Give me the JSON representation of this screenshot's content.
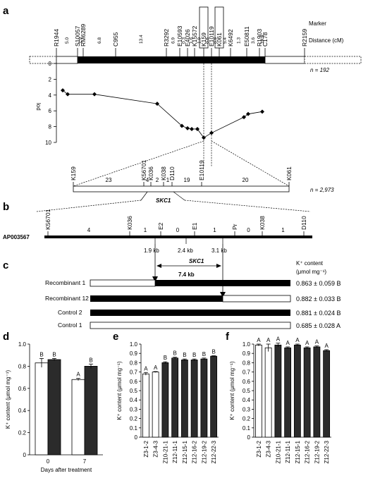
{
  "panel_labels": {
    "a": "a",
    "b": "b",
    "c": "c",
    "d": "d",
    "e": "e",
    "f": "f"
  },
  "panel_a": {
    "marker_header": "Marker",
    "distance_header": "Distance (cM)",
    "markers": [
      "R1944",
      "S10057",
      "RM6289",
      "C955",
      "R3292",
      "E10593",
      "E4026",
      "K15572",
      "K159",
      "E10119",
      "K061",
      "K6492",
      "E50811",
      "R1903",
      "C178",
      "R2159"
    ],
    "boxed_markers": [
      "K159",
      "K061"
    ],
    "distances": [
      "5.0",
      "1.9",
      "6.8",
      "13.4",
      "6.9",
      "0.3",
      "1.6",
      "1.9",
      "0.5",
      "0.9",
      "5.4",
      "1.3",
      "3.6",
      "14.4"
    ],
    "n_label": "n = 192",
    "lod_axis_label": "lod",
    "lod_ticks": [
      "0",
      "2",
      "4",
      "6",
      "8",
      "10"
    ],
    "fine_markers": [
      "K159",
      "K56701",
      "K036",
      "K038",
      "D110",
      "E10119",
      "K061"
    ],
    "fine_counts": [
      "23",
      "4",
      "2",
      "1",
      "19",
      "20"
    ],
    "fine_n": "n = 2,973",
    "gene": "SKC1"
  },
  "panel_b": {
    "bac": "AP003567",
    "markers": [
      "K56701",
      "K036",
      "E2",
      "E1",
      "Pr",
      "K038",
      "D110"
    ],
    "counts": [
      "4",
      "1",
      "0",
      "1",
      "0",
      "1"
    ],
    "gene": "SKC1",
    "dist1": "1.9 kb",
    "dist2": "2.4 kb",
    "dist3": "3.1 kb"
  },
  "panel_c": {
    "gene": "SKC1",
    "size": "7.4 kb",
    "header1": "K⁺ content",
    "header2": "(μmol mg⁻¹)",
    "rows": [
      {
        "name": "Recombinant 1",
        "value": "0.863 ± 0.059 B"
      },
      {
        "name": "Recombinant 12",
        "value": "0.882 ± 0.033 B"
      },
      {
        "name": "Control 2",
        "value": "0.881 ± 0.024 B"
      },
      {
        "name": "Control 1",
        "value": "0.685 ± 0.028 A"
      }
    ]
  },
  "chart_data": [
    {
      "type": "bar",
      "panel": "d",
      "ylabel": "K⁺ content (μmol mg⁻¹)",
      "xlabel": "Days after treatment",
      "categories": [
        "0",
        "7"
      ],
      "series": [
        {
          "color": "#ffffff",
          "values": [
            0.83,
            0.68
          ],
          "errors": [
            0.04,
            0.01
          ],
          "letters": [
            "B",
            "A"
          ]
        },
        {
          "color": "#2b2b2b",
          "values": [
            0.86,
            0.8
          ],
          "errors": [
            0.01,
            0.02
          ],
          "letters": [
            "B",
            "B"
          ]
        }
      ],
      "ylim": [
        0,
        1.0
      ],
      "yticks": [
        "0",
        "0.2",
        "0.4",
        "0.6",
        "0.8",
        "1.0"
      ]
    },
    {
      "type": "bar",
      "panel": "e",
      "ylabel": "K⁺ content (μmol mg⁻¹)",
      "categories": [
        "Z3-1-2",
        "Z3-4-3",
        "Z10-21-1",
        "Z12-11-1",
        "Z12-15-1",
        "Z12-16-2",
        "Z12-19-2",
        "Z12-22-3"
      ],
      "values": [
        0.68,
        0.7,
        0.8,
        0.85,
        0.83,
        0.83,
        0.84,
        0.87
      ],
      "errors": [
        0.015,
        0.005,
        0.01,
        0.01,
        0.01,
        0.01,
        0.01,
        0.005
      ],
      "fills": [
        "#ffffff",
        "#ffffff",
        "#2b2b2b",
        "#2b2b2b",
        "#2b2b2b",
        "#2b2b2b",
        "#2b2b2b",
        "#2b2b2b"
      ],
      "letters": [
        "A",
        "A",
        "B",
        "B",
        "B",
        "B",
        "B",
        "B"
      ],
      "ylim": [
        0,
        1.0
      ],
      "yticks": [
        "0",
        "0.1",
        "0.2",
        "0.3",
        "0.4",
        "0.5",
        "0.6",
        "0.7",
        "0.8",
        "0.9",
        "1.0"
      ]
    },
    {
      "type": "bar",
      "panel": "f",
      "ylabel": "K⁺ content (μmol mg⁻¹)",
      "categories": [
        "Z3-1-2",
        "Z3-4-3",
        "Z10-21-1",
        "Z12-11-1",
        "Z12-15-1",
        "Z12-16-2",
        "Z12-19-2",
        "Z12-22-3"
      ],
      "values": [
        0.99,
        0.96,
        0.99,
        0.96,
        0.99,
        0.96,
        0.97,
        0.93
      ],
      "errors": [
        0.01,
        0.04,
        0.02,
        0.01,
        0.01,
        0.01,
        0.01,
        0.01
      ],
      "fills": [
        "#ffffff",
        "#ffffff",
        "#2b2b2b",
        "#2b2b2b",
        "#2b2b2b",
        "#2b2b2b",
        "#2b2b2b",
        "#2b2b2b"
      ],
      "letters": [
        "A",
        "A",
        "A",
        "A",
        "A",
        "A",
        "A",
        "A"
      ],
      "ylim": [
        0,
        1.0
      ],
      "yticks": [
        "0",
        "0.1",
        "0.2",
        "0.3",
        "0.4",
        "0.5",
        "0.6",
        "0.7",
        "0.8",
        "0.9",
        "1.0"
      ]
    }
  ]
}
